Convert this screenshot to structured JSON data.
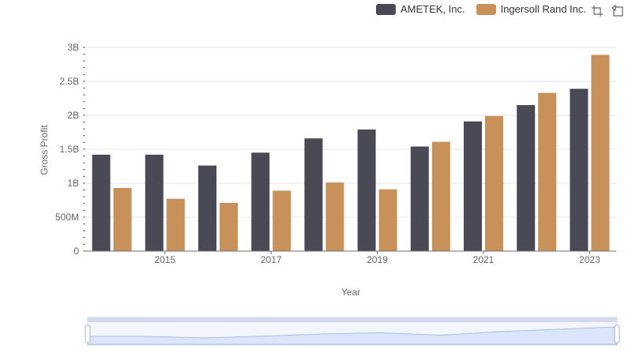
{
  "legend": {
    "items": [
      {
        "label": "AMETEK, Inc.",
        "color": "#4a4a56"
      },
      {
        "label": "Ingersoll Rand Inc.",
        "color": "#c8915a"
      }
    ]
  },
  "toolbox": {
    "icons": [
      "zoom-icon",
      "restore-icon"
    ]
  },
  "chart_data": {
    "type": "bar",
    "x": [
      2014,
      2015,
      2016,
      2017,
      2018,
      2019,
      2020,
      2021,
      2022,
      2023
    ],
    "series": [
      {
        "name": "AMETEK, Inc.",
        "color": "#4a4a56",
        "values": [
          1.42,
          1.42,
          1.26,
          1.45,
          1.66,
          1.79,
          1.54,
          1.91,
          2.15,
          2.39
        ]
      },
      {
        "name": "Ingersoll Rand Inc.",
        "color": "#c8915a",
        "values": [
          0.93,
          0.77,
          0.71,
          0.89,
          1.01,
          0.91,
          1.61,
          1.99,
          2.33,
          2.89
        ]
      }
    ],
    "y_unit": "B",
    "xlabel": "Year",
    "ylabel": "Gross Profit",
    "ylim": [
      0,
      3
    ],
    "yticks": [
      "0",
      "500M",
      "1B",
      "1.5B",
      "2B",
      "2.5B",
      "3B"
    ],
    "xticks": [
      "2015",
      "2017",
      "2019",
      "2021",
      "2023"
    ],
    "grid": true,
    "legend_position": "top-right"
  }
}
